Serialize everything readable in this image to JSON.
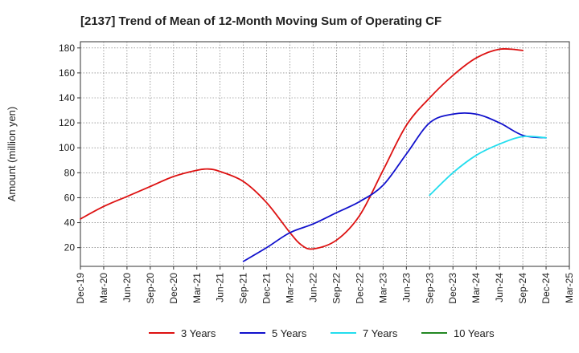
{
  "chart_data": {
    "type": "line",
    "title": "[2137]  Trend of Mean of 12-Month Moving Sum of Operating CF",
    "xlabel": "",
    "ylabel": "Amount (million yen)",
    "x_ticks": [
      "Dec-19",
      "Mar-20",
      "Jun-20",
      "Sep-20",
      "Dec-20",
      "Mar-21",
      "Jun-21",
      "Sep-21",
      "Dec-21",
      "Mar-22",
      "Jun-22",
      "Sep-22",
      "Dec-22",
      "Mar-23",
      "Jun-23",
      "Sep-23",
      "Dec-23",
      "Mar-24",
      "Jun-24",
      "Sep-24",
      "Dec-24",
      "Mar-25"
    ],
    "y_ticks": [
      20,
      40,
      60,
      80,
      100,
      120,
      140,
      160,
      180
    ],
    "ylim": [
      5,
      185
    ],
    "grid": true,
    "legend_position": "bottom",
    "series": [
      {
        "name": "3 Years",
        "color": "#dd1111",
        "points": [
          [
            0,
            43
          ],
          [
            1,
            53
          ],
          [
            2,
            61
          ],
          [
            3,
            69
          ],
          [
            4,
            77
          ],
          [
            5,
            82
          ],
          [
            5.5,
            83
          ],
          [
            6,
            81
          ],
          [
            7,
            73
          ],
          [
            8,
            56
          ],
          [
            9,
            32
          ],
          [
            9.5,
            22
          ],
          [
            10,
            19
          ],
          [
            11,
            26
          ],
          [
            12,
            46
          ],
          [
            13,
            82
          ],
          [
            14,
            118
          ],
          [
            15,
            140
          ],
          [
            16,
            158
          ],
          [
            17,
            172
          ],
          [
            18,
            179
          ],
          [
            19,
            178
          ]
        ]
      },
      {
        "name": "5 Years",
        "color": "#1111cc",
        "points": [
          [
            7,
            9
          ],
          [
            8,
            20
          ],
          [
            9,
            32
          ],
          [
            10,
            39
          ],
          [
            11,
            48
          ],
          [
            12,
            57
          ],
          [
            13,
            70
          ],
          [
            14,
            95
          ],
          [
            15,
            120
          ],
          [
            16,
            127
          ],
          [
            17,
            127
          ],
          [
            18,
            120
          ],
          [
            19,
            110
          ],
          [
            20,
            108
          ]
        ]
      },
      {
        "name": "7 Years",
        "color": "#22ddee",
        "points": [
          [
            15,
            62
          ],
          [
            16,
            80
          ],
          [
            17,
            94
          ],
          [
            18,
            103
          ],
          [
            19,
            109
          ],
          [
            20,
            108
          ]
        ]
      },
      {
        "name": "10 Years",
        "color": "#228822",
        "points": []
      }
    ]
  }
}
